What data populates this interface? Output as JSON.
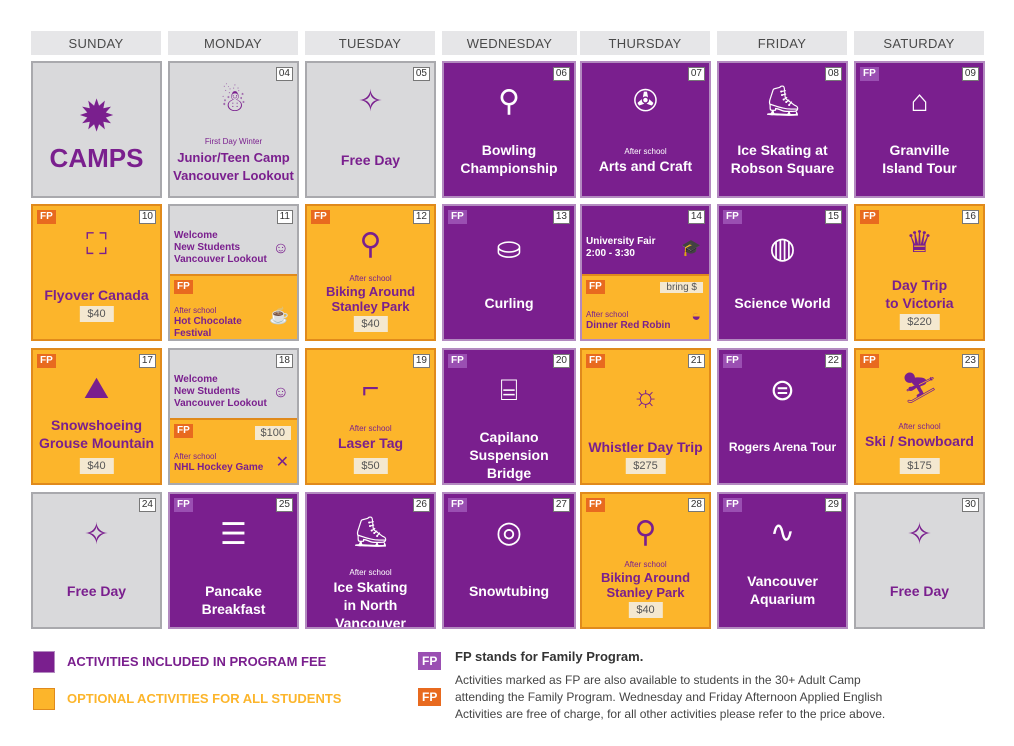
{
  "days": [
    "SUNDAY",
    "MONDAY",
    "TUESDAY",
    "WEDNESDAY",
    "THURSDAY",
    "FRIDAY",
    "SATURDAY"
  ],
  "colors": {
    "purple": "#7a1f8e",
    "orange": "#fcb52b",
    "gray": "#d9d9db"
  },
  "camps_logo": "CAMPS",
  "cells": {
    "c04": {
      "num": "04",
      "sub": "First Day Winter",
      "title": "Junior/Teen Camp\nVancouver Lookout",
      "icon": "snowman-icon"
    },
    "c05": {
      "num": "05",
      "title": "Free Day",
      "icon": "celebrate-icon"
    },
    "c06": {
      "num": "06",
      "title": "Bowling\nChampionship",
      "icon": "bowling-icon"
    },
    "c07": {
      "num": "07",
      "sub": "After school",
      "title": "Arts and Craft",
      "icon": "pinwheel-icon"
    },
    "c08": {
      "num": "08",
      "title": "Ice Skating at\nRobson Square",
      "icon": "skate-icon"
    },
    "c09": {
      "num": "09",
      "fp": "FP",
      "title": "Granville\nIsland Tour",
      "icon": "market-icon"
    },
    "c10": {
      "num": "10",
      "fp": "FP",
      "title": "Flyover Canada",
      "price": "$40",
      "icon": "theater-icon"
    },
    "c11": {
      "num": "11",
      "top": "Welcome\nNew Students\nVancouver Lookout",
      "fp": "FP",
      "sub": "After school",
      "bottom": "Hot Chocolate\nFestival"
    },
    "c12": {
      "num": "12",
      "fp": "FP",
      "sub": "After school",
      "title": "Biking Around\nStanley Park",
      "price": "$40",
      "icon": "bike-icon"
    },
    "c13": {
      "num": "13",
      "fp": "FP",
      "title": "Curling",
      "icon": "curling-icon"
    },
    "c14": {
      "num": "14",
      "top": "University Fair\n2:00 - 3:30",
      "fp": "FP",
      "tag": "bring $",
      "sub": "After school",
      "bottom": "Dinner Red Robin"
    },
    "c15": {
      "num": "15",
      "fp": "FP",
      "title": "Science World",
      "icon": "dome-icon"
    },
    "c16": {
      "num": "16",
      "fp": "FP",
      "title": "Day Trip\nto Victoria",
      "price": "$220",
      "icon": "crown-icon"
    },
    "c17": {
      "num": "17",
      "fp": "FP",
      "title": "Snowshoeing\nGrouse Mountain",
      "price": "$40",
      "icon": "mountain-icon"
    },
    "c18": {
      "num": "18",
      "top": "Welcome\nNew Students\nVancouver Lookout",
      "fp": "FP",
      "tag": "$100",
      "sub": "After school",
      "bottom": "NHL Hockey Game"
    },
    "c19": {
      "num": "19",
      "sub": "After school",
      "title": "Laser Tag",
      "price": "$50",
      "icon": "laser-icon"
    },
    "c20": {
      "num": "20",
      "fp": "FP",
      "title": "Capilano\nSuspension Bridge",
      "icon": "bridge-icon"
    },
    "c21": {
      "num": "21",
      "fp": "FP",
      "title": "Whistler Day Trip",
      "price": "$275",
      "icon": "hike-icon"
    },
    "c22": {
      "num": "22",
      "fp": "FP",
      "title": "Rogers Arena Tour",
      "icon": "arena-icon"
    },
    "c23": {
      "num": "23",
      "fp": "FP",
      "sub": "After school",
      "title": "Ski / Snowboard",
      "price": "$175",
      "icon": "ski-icon"
    },
    "c24": {
      "num": "24",
      "title": "Free Day",
      "icon": "celebrate-icon"
    },
    "c25": {
      "num": "25",
      "fp": "FP",
      "title": "Pancake Breakfast",
      "icon": "pancake-icon"
    },
    "c26": {
      "num": "26",
      "sub": "After school",
      "title": "Ice Skating\nin North Vancouver",
      "icon": "skate-icon"
    },
    "c27": {
      "num": "27",
      "fp": "FP",
      "title": "Snowtubing",
      "icon": "tube-icon"
    },
    "c28": {
      "num": "28",
      "fp": "FP",
      "sub": "After school",
      "title": "Biking Around\nStanley Park",
      "price": "$40",
      "icon": "bike-icon"
    },
    "c29": {
      "num": "29",
      "fp": "FP",
      "title": "Vancouver\nAquarium",
      "icon": "dolphin-icon"
    },
    "c30": {
      "num": "30",
      "title": "Free Day",
      "icon": "celebrate-icon"
    }
  },
  "legend": {
    "included": "ACTIVITIES INCLUDED IN PROGRAM FEE",
    "optional": "OPTIONAL ACTIVITIES FOR ALL STUDENTS",
    "fp_label": "FP",
    "fp_heading": "FP stands for Family Program.",
    "fp_note_1": "Activities marked as FP are also available to students in the 30+ Adult Camp",
    "fp_note_2": "attending the Family Program. Wednesday and Friday Afternoon Applied English",
    "fp_note_3": "Activities are free of charge, for all other activities please refer to the price above."
  }
}
